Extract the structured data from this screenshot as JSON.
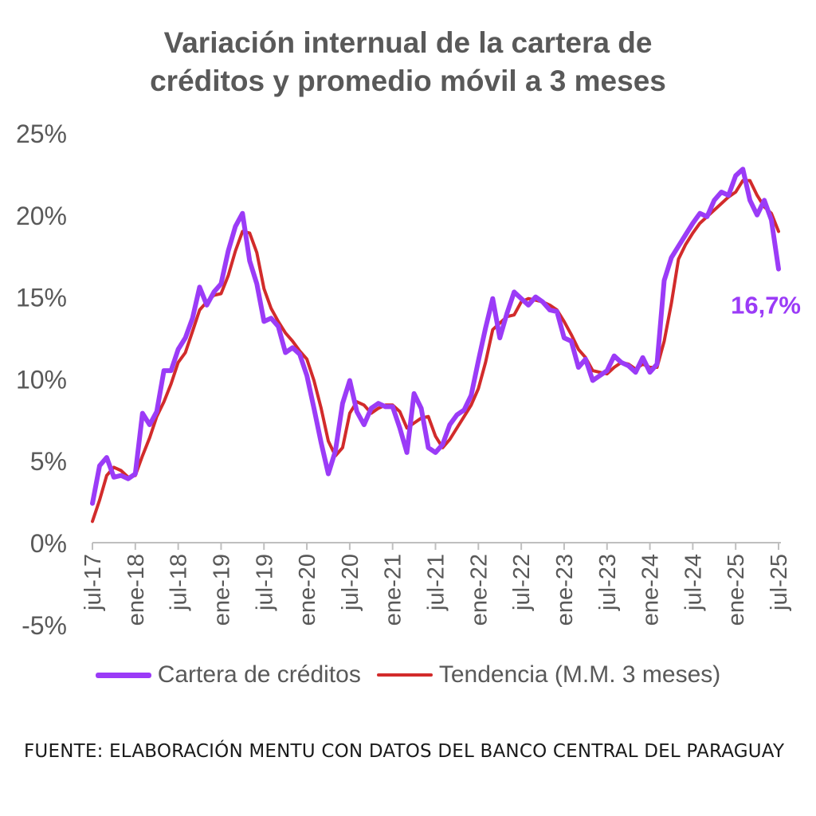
{
  "chart_data": {
    "type": "line",
    "title_line1": "Variación internual de la cartera de",
    "title_line2": "créditos y promedio móvil a 3 meses",
    "ylim": [
      -5,
      25
    ],
    "yticks": [
      "25%",
      "20%",
      "15%",
      "10%",
      "5%",
      "0%",
      "-5%"
    ],
    "ytick_values": [
      25,
      20,
      15,
      10,
      5,
      0,
      -5
    ],
    "xticks": [
      {
        "label": "jul-17",
        "index": 0
      },
      {
        "label": "ene-18",
        "index": 6
      },
      {
        "label": "jul-18",
        "index": 12
      },
      {
        "label": "ene-19",
        "index": 18
      },
      {
        "label": "jul-19",
        "index": 24
      },
      {
        "label": "ene-20",
        "index": 30
      },
      {
        "label": "jul-20",
        "index": 36
      },
      {
        "label": "ene-21",
        "index": 42
      },
      {
        "label": "jul-21",
        "index": 48
      },
      {
        "label": "ene-22",
        "index": 54
      },
      {
        "label": "jul-22",
        "index": 60
      },
      {
        "label": "ene-23",
        "index": 66
      },
      {
        "label": "jul-23",
        "index": 72
      },
      {
        "label": "ene-24",
        "index": 78
      },
      {
        "label": "jul-24",
        "index": 84
      },
      {
        "label": "ene-25",
        "index": 90
      },
      {
        "label": "jul-25",
        "index": 96
      }
    ],
    "series": [
      {
        "name": "Cartera de créditos",
        "color": "#9b3bf7",
        "values": [
          2.4,
          4.7,
          5.2,
          4.0,
          4.1,
          3.9,
          4.2,
          7.9,
          7.2,
          8.0,
          10.5,
          10.5,
          11.8,
          12.5,
          13.7,
          15.6,
          14.5,
          15.3,
          15.8,
          17.8,
          19.3,
          20.1,
          17.2,
          15.8,
          13.5,
          13.7,
          13.2,
          11.6,
          11.9,
          11.5,
          10.2,
          8.2,
          6.1,
          4.2,
          5.6,
          8.5,
          9.9,
          8.0,
          7.2,
          8.2,
          8.5,
          8.3,
          8.3,
          7.0,
          5.5,
          9.1,
          8.2,
          5.8,
          5.5,
          6.0,
          7.2,
          7.8,
          8.1,
          9.0,
          11.1,
          13.1,
          14.9,
          12.5,
          14.0,
          15.3,
          14.9,
          14.5,
          15.0,
          14.7,
          14.2,
          14.1,
          12.5,
          12.3,
          10.7,
          11.2,
          9.9,
          10.2,
          10.5,
          11.4,
          11.0,
          10.8,
          10.4,
          11.3,
          10.4,
          10.9,
          16.0,
          17.4,
          18.1,
          18.8,
          19.5,
          20.1,
          19.9,
          20.9,
          21.4,
          21.2,
          22.4,
          22.8,
          20.9,
          20.0,
          20.9,
          19.7,
          16.7
        ]
      },
      {
        "name": "Tendencia (M.M. 3 meses)",
        "color": "#d22b2b",
        "values": [
          1.3,
          2.6,
          4.1,
          4.6,
          4.4,
          4.0,
          4.1,
          5.3,
          6.4,
          7.7,
          8.6,
          9.7,
          11.0,
          11.6,
          12.9,
          14.2,
          14.7,
          15.1,
          15.2,
          16.3,
          17.8,
          19.0,
          18.9,
          17.7,
          15.5,
          14.3,
          13.5,
          12.8,
          12.3,
          11.7,
          11.2,
          9.9,
          8.2,
          6.2,
          5.3,
          5.8,
          7.9,
          8.6,
          8.4,
          7.9,
          8.2,
          8.4,
          8.4,
          8.0,
          7.0,
          7.3,
          7.6,
          7.7,
          6.5,
          5.8,
          6.3,
          7.0,
          7.7,
          8.4,
          9.4,
          11.0,
          13.0,
          13.4,
          13.8,
          13.9,
          14.7,
          14.9,
          14.8,
          14.7,
          14.5,
          14.2,
          13.5,
          12.7,
          11.8,
          11.3,
          10.5,
          10.4,
          10.3,
          10.7,
          11.0,
          10.9,
          10.6,
          10.9,
          10.7,
          10.7,
          12.3,
          14.6,
          17.3,
          18.2,
          18.9,
          19.5,
          19.9,
          20.3,
          20.7,
          21.1,
          21.4,
          22.1,
          22.1,
          21.2,
          20.5,
          20.1,
          19.0
        ]
      }
    ],
    "annotation": {
      "text": "16,7%",
      "color": "#9b3bf7",
      "series": 0,
      "index": 96
    },
    "legend": [
      "Cartera de créditos",
      "Tendencia (M.M. 3 meses)"
    ],
    "legend_position": "bottom",
    "grid": false
  },
  "source": "FUENTE: ELABORACIÓN MENTU CON DATOS DEL BANCO CENTRAL DEL PARAGUAY",
  "colors": {
    "text": "#595959",
    "axis": "#bfbfbf",
    "purple": "#9b3bf7",
    "red": "#d22b2b"
  }
}
